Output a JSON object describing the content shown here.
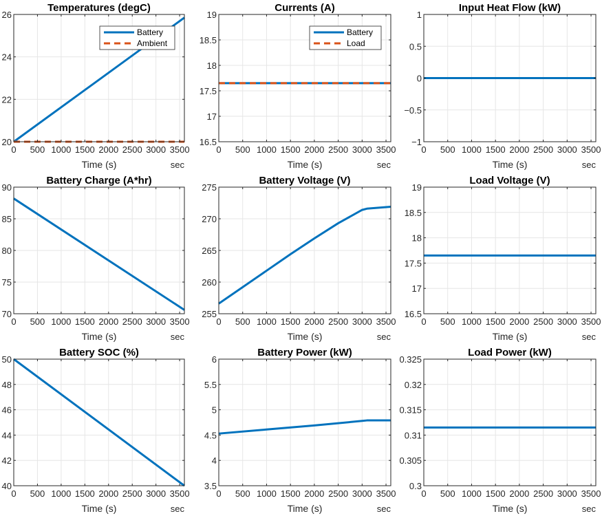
{
  "colors": {
    "blue": "#0072BD",
    "orange": "#D95319",
    "grid": "#e6e6e6",
    "axis": "#262626"
  },
  "chart_data": [
    {
      "type": "line",
      "title": "Temperatures (degC)",
      "xlabel": "Time (s)",
      "x_unit": "sec",
      "xlim": [
        0,
        3600
      ],
      "ylim": [
        20,
        26
      ],
      "xticks": [
        0,
        500,
        1000,
        1500,
        2000,
        2500,
        3000,
        3500
      ],
      "yticks": [
        20,
        22,
        24,
        26
      ],
      "ytick_labels": [
        "20",
        "22",
        "24",
        "26"
      ],
      "grid": true,
      "legend": "top-right",
      "series": [
        {
          "name": "Battery",
          "color": "#0072BD",
          "dash": "solid",
          "x": [
            0,
            3600
          ],
          "y": [
            20.0,
            25.85
          ]
        },
        {
          "name": "Ambient",
          "color": "#D95319",
          "dash": "dashed",
          "x": [
            0,
            3600
          ],
          "y": [
            20.0,
            20.0
          ]
        }
      ]
    },
    {
      "type": "line",
      "title": "Currents (A)",
      "xlabel": "Time (s)",
      "x_unit": "sec",
      "xlim": [
        0,
        3600
      ],
      "ylim": [
        16.5,
        19
      ],
      "xticks": [
        0,
        500,
        1000,
        1500,
        2000,
        2500,
        3000,
        3500
      ],
      "yticks": [
        16.5,
        17,
        17.5,
        18,
        18.5,
        19
      ],
      "ytick_labels": [
        "16.5",
        "17",
        "17.5",
        "18",
        "18.5",
        "19"
      ],
      "grid": true,
      "legend": "top-right",
      "series": [
        {
          "name": "Battery",
          "color": "#0072BD",
          "dash": "solid",
          "x": [
            0,
            3600
          ],
          "y": [
            17.65,
            17.65
          ]
        },
        {
          "name": "Load",
          "color": "#D95319",
          "dash": "dashed",
          "x": [
            0,
            3600
          ],
          "y": [
            17.65,
            17.65
          ]
        }
      ]
    },
    {
      "type": "line",
      "title": "Input Heat Flow (kW)",
      "xlabel": "Time (s)",
      "x_unit": "sec",
      "xlim": [
        0,
        3600
      ],
      "ylim": [
        -1,
        1
      ],
      "xticks": [
        0,
        500,
        1000,
        1500,
        2000,
        2500,
        3000,
        3500
      ],
      "yticks": [
        -1,
        -0.5,
        0,
        0.5,
        1
      ],
      "ytick_labels": [
        "−1",
        "−0.5",
        "0",
        "0.5",
        "1"
      ],
      "grid": true,
      "series": [
        {
          "color": "#0072BD",
          "dash": "solid",
          "x": [
            0,
            3600
          ],
          "y": [
            0,
            0
          ]
        }
      ]
    },
    {
      "type": "line",
      "title": "Battery Charge (A*hr)",
      "xlabel": "Time (s)",
      "x_unit": "sec",
      "xlim": [
        0,
        3600
      ],
      "ylim": [
        70,
        90
      ],
      "xticks": [
        0,
        500,
        1000,
        1500,
        2000,
        2500,
        3000,
        3500
      ],
      "yticks": [
        70,
        75,
        80,
        85,
        90
      ],
      "ytick_labels": [
        "70",
        "75",
        "80",
        "85",
        "90"
      ],
      "grid": true,
      "series": [
        {
          "color": "#0072BD",
          "dash": "solid",
          "x": [
            0,
            3600
          ],
          "y": [
            88.2,
            70.6
          ]
        }
      ]
    },
    {
      "type": "line",
      "title": "Battery Voltage (V)",
      "xlabel": "Time (s)",
      "x_unit": "sec",
      "xlim": [
        0,
        3600
      ],
      "ylim": [
        255,
        275
      ],
      "xticks": [
        0,
        500,
        1000,
        1500,
        2000,
        2500,
        3000,
        3500
      ],
      "yticks": [
        255,
        260,
        265,
        270,
        275
      ],
      "ytick_labels": [
        "255",
        "260",
        "265",
        "270",
        "275"
      ],
      "grid": true,
      "series": [
        {
          "color": "#0072BD",
          "dash": "solid",
          "x": [
            0,
            500,
            1000,
            1500,
            2000,
            2500,
            3000,
            3100,
            3600
          ],
          "y": [
            256.6,
            259.2,
            261.8,
            264.4,
            266.9,
            269.3,
            271.4,
            271.6,
            271.9
          ]
        }
      ]
    },
    {
      "type": "line",
      "title": "Load Voltage (V)",
      "xlabel": "Time (s)",
      "x_unit": "sec",
      "xlim": [
        0,
        3600
      ],
      "ylim": [
        16.5,
        19
      ],
      "xticks": [
        0,
        500,
        1000,
        1500,
        2000,
        2500,
        3000,
        3500
      ],
      "yticks": [
        16.5,
        17,
        17.5,
        18,
        18.5,
        19
      ],
      "ytick_labels": [
        "16.5",
        "17",
        "17.5",
        "18",
        "18.5",
        "19"
      ],
      "grid": true,
      "series": [
        {
          "color": "#0072BD",
          "dash": "solid",
          "x": [
            0,
            3600
          ],
          "y": [
            17.65,
            17.65
          ]
        }
      ]
    },
    {
      "type": "line",
      "title": "Battery SOC (%)",
      "xlabel": "Time (s)",
      "x_unit": "sec",
      "xlim": [
        0,
        3600
      ],
      "ylim": [
        40,
        50
      ],
      "xticks": [
        0,
        500,
        1000,
        1500,
        2000,
        2500,
        3000,
        3500
      ],
      "yticks": [
        40,
        42,
        44,
        46,
        48,
        50
      ],
      "ytick_labels": [
        "40",
        "42",
        "44",
        "46",
        "48",
        "50"
      ],
      "grid": true,
      "series": [
        {
          "color": "#0072BD",
          "dash": "solid",
          "x": [
            0,
            3600
          ],
          "y": [
            50,
            40
          ]
        }
      ]
    },
    {
      "type": "line",
      "title": "Battery Power (kW)",
      "xlabel": "Time (s)",
      "x_unit": "sec",
      "xlim": [
        0,
        3600
      ],
      "ylim": [
        3.5,
        6
      ],
      "xticks": [
        0,
        500,
        1000,
        1500,
        2000,
        2500,
        3000,
        3500
      ],
      "yticks": [
        3.5,
        4,
        4.5,
        5,
        5.5,
        6
      ],
      "ytick_labels": [
        "3.5",
        "4",
        "4.5",
        "5",
        "5.5",
        "6"
      ],
      "grid": true,
      "series": [
        {
          "color": "#0072BD",
          "dash": "solid",
          "x": [
            0,
            1000,
            2000,
            3000,
            3100,
            3600
          ],
          "y": [
            4.53,
            4.61,
            4.69,
            4.78,
            4.79,
            4.79
          ]
        }
      ]
    },
    {
      "type": "line",
      "title": "Load Power (kW)",
      "xlabel": "Time (s)",
      "x_unit": "sec",
      "xlim": [
        0,
        3600
      ],
      "ylim": [
        0.3,
        0.325
      ],
      "xticks": [
        0,
        500,
        1000,
        1500,
        2000,
        2500,
        3000,
        3500
      ],
      "yticks": [
        0.3,
        0.305,
        0.31,
        0.315,
        0.32,
        0.325
      ],
      "ytick_labels": [
        "0.3",
        "0.305",
        "0.31",
        "0.315",
        "0.32",
        "0.325"
      ],
      "grid": true,
      "series": [
        {
          "color": "#0072BD",
          "dash": "solid",
          "x": [
            0,
            3600
          ],
          "y": [
            0.3115,
            0.3115
          ]
        }
      ]
    }
  ]
}
